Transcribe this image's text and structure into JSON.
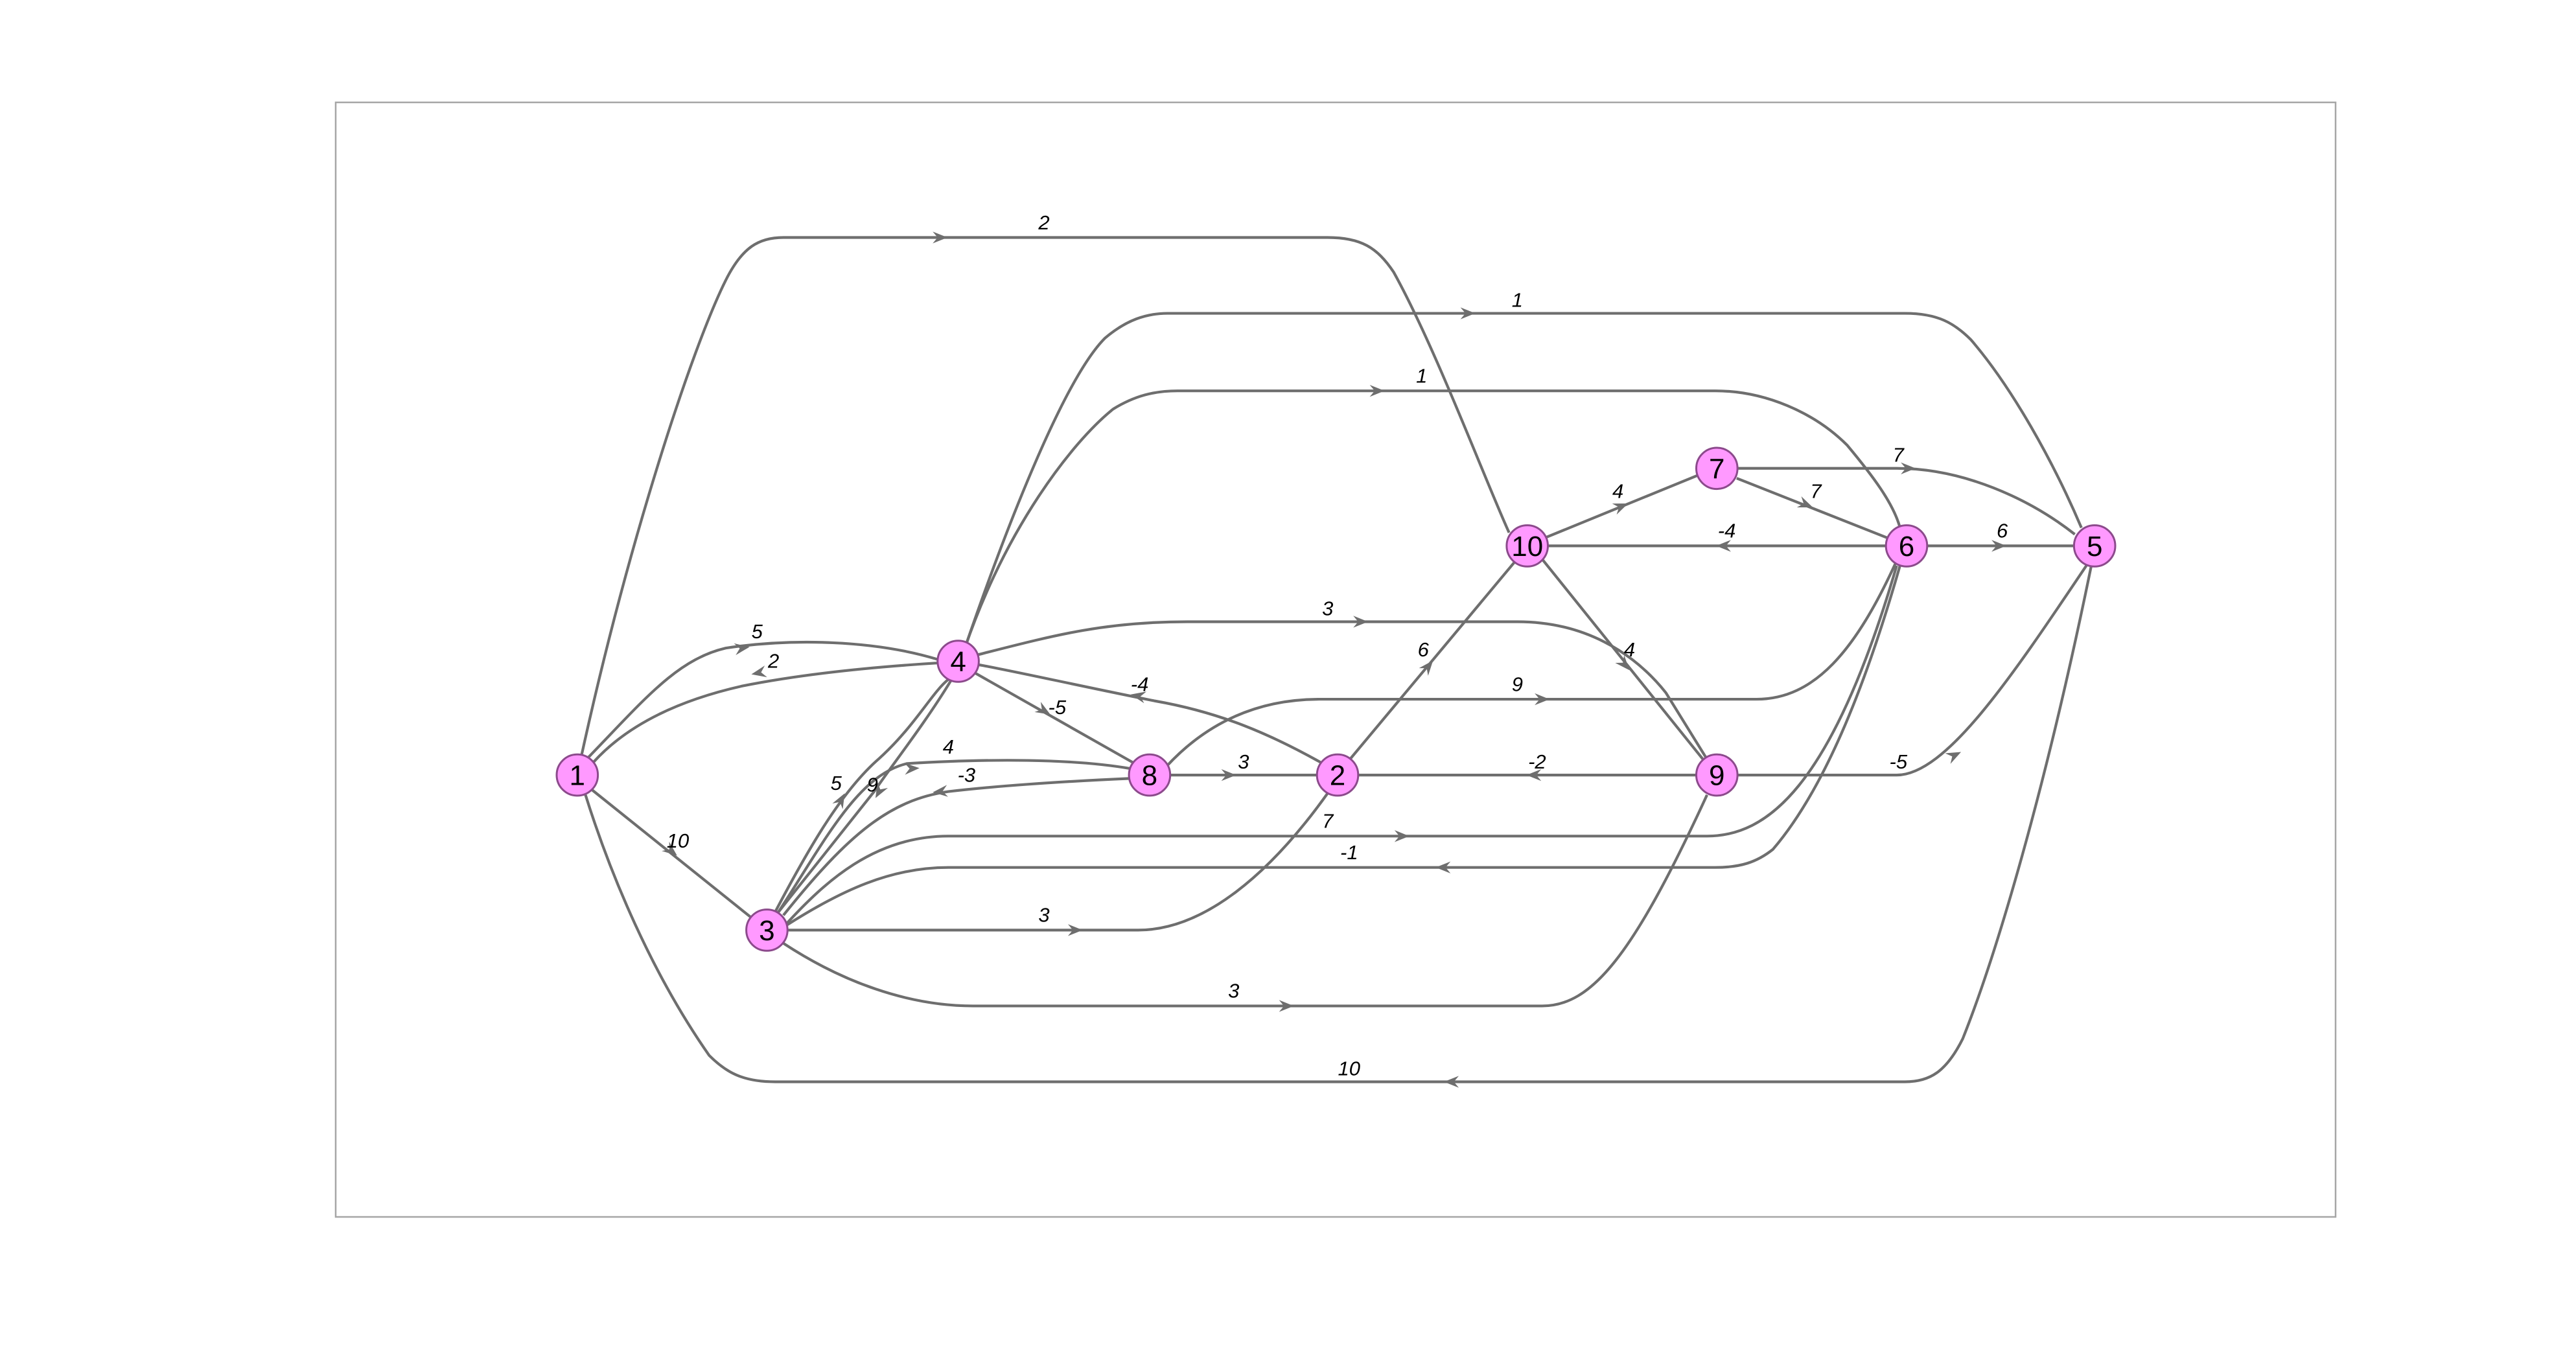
{
  "diagram": {
    "type": "directed-weighted-graph",
    "nodes": [
      {
        "id": "1",
        "label": "1"
      },
      {
        "id": "2",
        "label": "2"
      },
      {
        "id": "3",
        "label": "3"
      },
      {
        "id": "4",
        "label": "4"
      },
      {
        "id": "5",
        "label": "5"
      },
      {
        "id": "6",
        "label": "6"
      },
      {
        "id": "7",
        "label": "7"
      },
      {
        "id": "8",
        "label": "8"
      },
      {
        "id": "9",
        "label": "9"
      },
      {
        "id": "10",
        "label": "10"
      }
    ],
    "edges": [
      {
        "id": "e1",
        "from": "1",
        "to": "10",
        "weight": "2"
      },
      {
        "id": "e2",
        "from": "4",
        "to": "5",
        "weight": "1"
      },
      {
        "id": "e3",
        "from": "4",
        "to": "6",
        "weight": "1"
      },
      {
        "id": "e4",
        "from": "10",
        "to": "7",
        "weight": "4"
      },
      {
        "id": "e5",
        "from": "7",
        "to": "5",
        "weight": "7"
      },
      {
        "id": "e6",
        "from": "7",
        "to": "6",
        "weight": "7"
      },
      {
        "id": "e7",
        "from": "6",
        "to": "10",
        "weight": "-4"
      },
      {
        "id": "e8",
        "from": "6",
        "to": "5",
        "weight": "6"
      },
      {
        "id": "e9",
        "from": "4",
        "to": "9",
        "weight": "3"
      },
      {
        "id": "e10",
        "from": "10",
        "to": "9",
        "weight": "4"
      },
      {
        "id": "e11",
        "from": "2",
        "to": "10",
        "weight": "6"
      },
      {
        "id": "e12",
        "from": "1",
        "to": "4",
        "weight": "5"
      },
      {
        "id": "e13",
        "from": "4",
        "to": "1",
        "weight": "2"
      },
      {
        "id": "e14",
        "from": "2",
        "to": "4",
        "weight": "-4"
      },
      {
        "id": "e15",
        "from": "4",
        "to": "8",
        "weight": "-5"
      },
      {
        "id": "e16",
        "from": "8",
        "to": "6",
        "weight": "9"
      },
      {
        "id": "e17",
        "from": "3",
        "to": "8",
        "weight": "4"
      },
      {
        "id": "e18",
        "from": "8",
        "to": "3",
        "weight": "-3"
      },
      {
        "id": "e19",
        "from": "8",
        "to": "2",
        "weight": "3"
      },
      {
        "id": "e20",
        "from": "9",
        "to": "2",
        "weight": "-2"
      },
      {
        "id": "e21",
        "from": "9",
        "to": "5",
        "weight": "-5"
      },
      {
        "id": "e22",
        "from": "3",
        "to": "4",
        "weight": "5"
      },
      {
        "id": "e23",
        "from": "4",
        "to": "3",
        "weight": "9"
      },
      {
        "id": "e24",
        "from": "1",
        "to": "3",
        "weight": "10"
      },
      {
        "id": "e25",
        "from": "3",
        "to": "6",
        "weight": "7"
      },
      {
        "id": "e26",
        "from": "6",
        "to": "3",
        "weight": "-1"
      },
      {
        "id": "e27",
        "from": "3",
        "to": "2",
        "weight": "3"
      },
      {
        "id": "e28",
        "from": "3",
        "to": "9",
        "weight": "3"
      },
      {
        "id": "e29",
        "from": "5",
        "to": "1",
        "weight": "10"
      }
    ]
  },
  "colors": {
    "node_fill": "#ff99ff",
    "node_stroke": "#8c4a8c",
    "edge": "#6e6e6e",
    "frame": "#a6a6a6",
    "background": "#ffffff"
  }
}
